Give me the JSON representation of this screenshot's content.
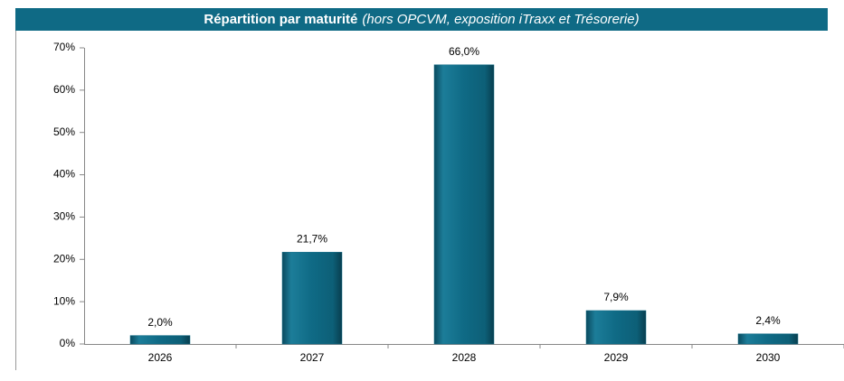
{
  "chart_data": {
    "type": "bar",
    "title": "Répartition par maturité",
    "subtitle": "(hors OPCVM, exposition iTraxx et Trésorerie)",
    "categories": [
      "2026",
      "2027",
      "2028",
      "2029",
      "2030"
    ],
    "values": [
      2.0,
      21.7,
      66.0,
      7.9,
      2.4
    ],
    "value_labels": [
      "2,0%",
      "21,7%",
      "66,0%",
      "7,9%",
      "2,4%"
    ],
    "color": "#0f6a85",
    "ylim": [
      0,
      70
    ],
    "yticks": [
      {
        "value": 0,
        "label": "0%"
      },
      {
        "value": 10,
        "label": "10%"
      },
      {
        "value": 20,
        "label": "20%"
      },
      {
        "value": 30,
        "label": "30%"
      },
      {
        "value": 40,
        "label": "40%"
      },
      {
        "value": 50,
        "label": "50%"
      },
      {
        "value": 60,
        "label": "60%"
      },
      {
        "value": 70,
        "label": "70%"
      }
    ],
    "grid": false
  }
}
